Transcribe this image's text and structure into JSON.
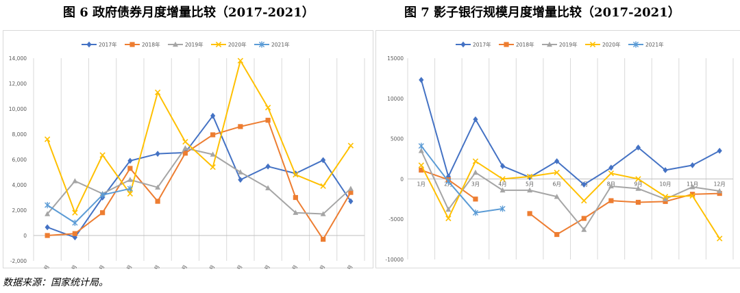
{
  "figures": {
    "left_title": "图 6  政府债券月度增量比较（2017-2021）",
    "right_title": "图 7 影子银行规模月度增量比较（2017-2021）"
  },
  "source_note": "数据来源：国家统计局。",
  "colors": {
    "2017年": "#4472c4",
    "2018年": "#ed7d31",
    "2019年": "#a5a5a5",
    "2020年": "#ffc000",
    "2021年": "#5b9bd5"
  },
  "markers": {
    "2017年": "diamond",
    "2018年": "square",
    "2019年": "triangle",
    "2020年": "x",
    "2021年": "star"
  },
  "chart_data": [
    {
      "type": "line",
      "title": "图 6  政府债券月度增量比较（2017-2021）",
      "categories": [
        "1月",
        "2月",
        "3月",
        "4月",
        "5月",
        "6月",
        "7月",
        "8月",
        "9月",
        "10月",
        "11月",
        "12月"
      ],
      "ylim": [
        -2000,
        14000
      ],
      "yticks": [
        -2000,
        0,
        2000,
        4000,
        6000,
        8000,
        10000,
        12000,
        14000
      ],
      "ytick_labels": [
        "-2,000",
        "0",
        "2,000",
        "4,000",
        "6,000",
        "8,000",
        "10,000",
        "12,000",
        "14,000"
      ],
      "x_label_row": "bottom",
      "grid": "vertical",
      "legend": "top",
      "series": [
        {
          "name": "2017年",
          "values": [
            650,
            -150,
            3000,
            5900,
            6450,
            6550,
            9450,
            4400,
            5450,
            4900,
            5950,
            2700
          ]
        },
        {
          "name": "2018年",
          "values": [
            0,
            150,
            1800,
            5300,
            2700,
            6500,
            7950,
            8600,
            9100,
            3000,
            -300,
            3400
          ]
        },
        {
          "name": "2019年",
          "values": [
            1700,
            4300,
            3300,
            4400,
            3800,
            6900,
            6400,
            5000,
            3750,
            1800,
            1700,
            3700
          ]
        },
        {
          "name": "2020年",
          "values": [
            7600,
            1800,
            6350,
            3300,
            11300,
            7400,
            5400,
            13800,
            10100,
            4800,
            3900,
            7100
          ]
        },
        {
          "name": "2021年",
          "values": [
            2400,
            1000,
            3200,
            3700,
            null,
            null,
            null,
            null,
            null,
            null,
            null,
            null
          ]
        }
      ]
    },
    {
      "type": "line",
      "title": "图 7 影子银行规模月度增量比较（2017-2021）",
      "categories": [
        "1月",
        "2月",
        "3月",
        "4月",
        "5月",
        "6月",
        "7月",
        "8月",
        "9月",
        "10月",
        "11月",
        "12月"
      ],
      "ylim": [
        -10000,
        15000
      ],
      "yticks": [
        -10000,
        -5000,
        0,
        5000,
        10000,
        15000
      ],
      "ytick_labels": [
        "-10000",
        "-5000",
        "0",
        "5000",
        "10000",
        "15000"
      ],
      "x_label_row": "zero",
      "grid": "vertical",
      "legend": "top",
      "series": [
        {
          "name": "2017年",
          "values": [
            12300,
            300,
            7400,
            1600,
            200,
            2200,
            -700,
            1400,
            3900,
            1100,
            1700,
            3500
          ]
        },
        {
          "name": "2018年",
          "values": [
            1100,
            -100,
            -2500,
            null,
            -4300,
            -6900,
            -4900,
            -2700,
            -2900,
            -2800,
            -1900,
            -1800
          ]
        },
        {
          "name": "2019年",
          "values": [
            3500,
            -3800,
            800,
            -1400,
            -1400,
            -2200,
            -6300,
            -900,
            -1200,
            -2500,
            -1000,
            -1500
          ]
        },
        {
          "name": "2020年",
          "values": [
            1700,
            -4900,
            2200,
            0,
            300,
            800,
            -2700,
            700,
            0,
            -2200,
            -2100,
            -7400
          ]
        },
        {
          "name": "2021年",
          "values": [
            4100,
            -300,
            -4200,
            -3700,
            null,
            null,
            null,
            null,
            null,
            null,
            null,
            null
          ]
        }
      ]
    }
  ]
}
